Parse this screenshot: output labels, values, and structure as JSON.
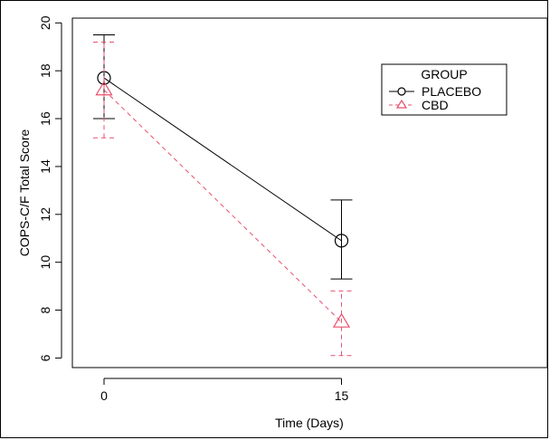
{
  "chart_data": {
    "type": "line",
    "xlabel": "Time (Days)",
    "ylabel": "COPS-C/F Total Score",
    "x": [
      0,
      15
    ],
    "xlim": [
      -2,
      28
    ],
    "ylim": [
      5.6,
      20.2
    ],
    "xticks": [
      0,
      15
    ],
    "yticks": [
      6,
      8,
      10,
      12,
      14,
      16,
      18,
      20
    ],
    "grid": false,
    "legend": {
      "title": "GROUP",
      "placement": "top-right"
    },
    "series": [
      {
        "name": "PLACEBO",
        "values": [
          17.7,
          10.9
        ],
        "error_low": [
          16.0,
          9.3
        ],
        "error_high": [
          19.5,
          12.6
        ],
        "color": "#000000",
        "line_style": "solid",
        "marker": "circle"
      },
      {
        "name": "CBD",
        "values": [
          17.2,
          7.5
        ],
        "error_low": [
          15.2,
          6.1
        ],
        "error_high": [
          19.2,
          8.8
        ],
        "color": "#e8506e",
        "line_style": "dashed",
        "marker": "triangle"
      }
    ]
  }
}
